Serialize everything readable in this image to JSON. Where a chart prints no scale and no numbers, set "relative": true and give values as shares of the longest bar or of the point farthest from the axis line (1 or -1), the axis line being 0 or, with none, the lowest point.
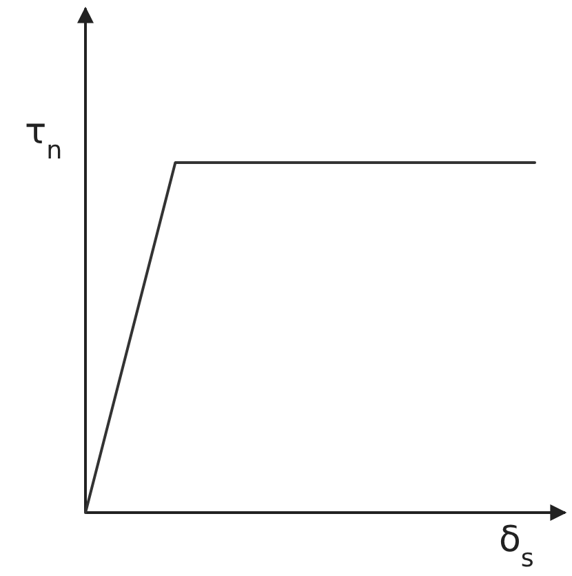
{
  "chart_data": {
    "type": "line",
    "relative": true,
    "xlabel": "δ$_{s}$",
    "ylabel": "τ$_{n}$",
    "categories": [
      null,
      null,
      null,
      null,
      null,
      null
    ],
    "series": [
      {
        "color": "#333333",
        "values": [
          0,
          1,
          1,
          1,
          1,
          1
        ]
      }
    ]
  }
}
